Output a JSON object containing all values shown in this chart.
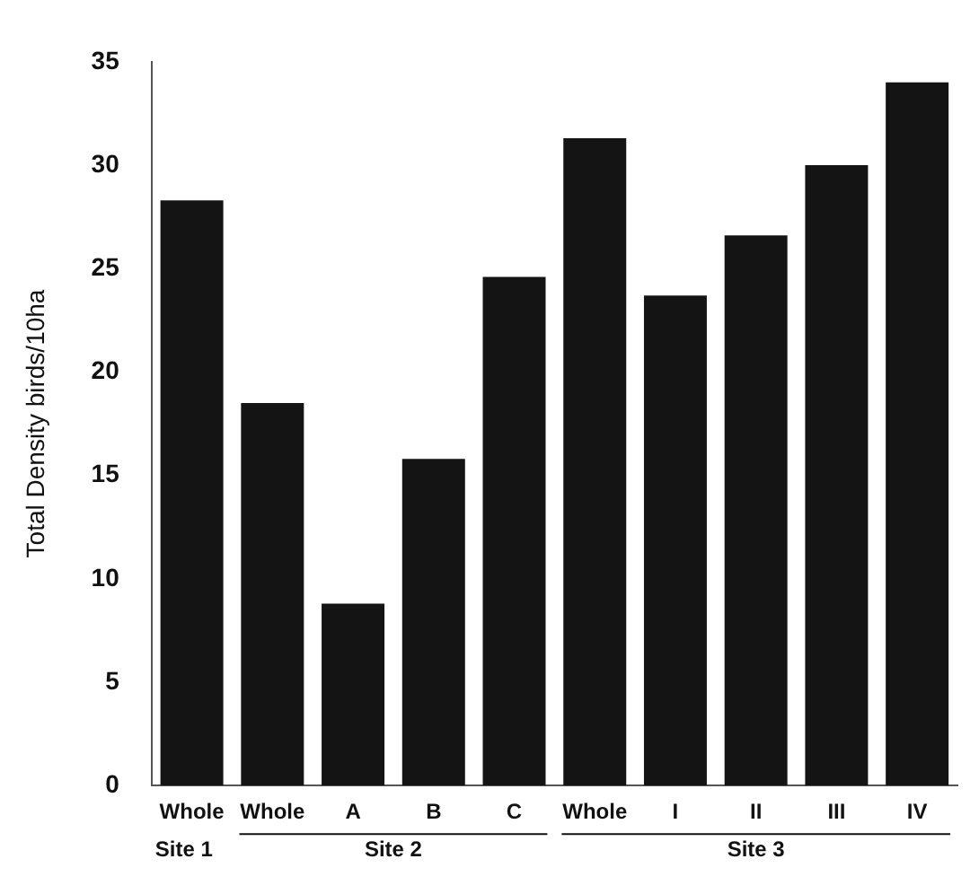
{
  "chart_data": {
    "type": "bar",
    "ylabel": "Total Density birds/10ha",
    "categories": [
      "Whole",
      "Whole",
      "A",
      "B",
      "C",
      "Whole",
      "I",
      "II",
      "III",
      "IV"
    ],
    "values": [
      28.3,
      18.5,
      8.8,
      15.8,
      24.6,
      31.3,
      23.7,
      26.6,
      30.0,
      34.0
    ],
    "color": "#141414",
    "ylim": [
      0,
      35
    ],
    "yticks": [
      0,
      5,
      10,
      15,
      20,
      25,
      30,
      35
    ],
    "grid": false,
    "annotations": [
      "Site 1",
      "Site 2",
      "Site 3"
    ]
  }
}
